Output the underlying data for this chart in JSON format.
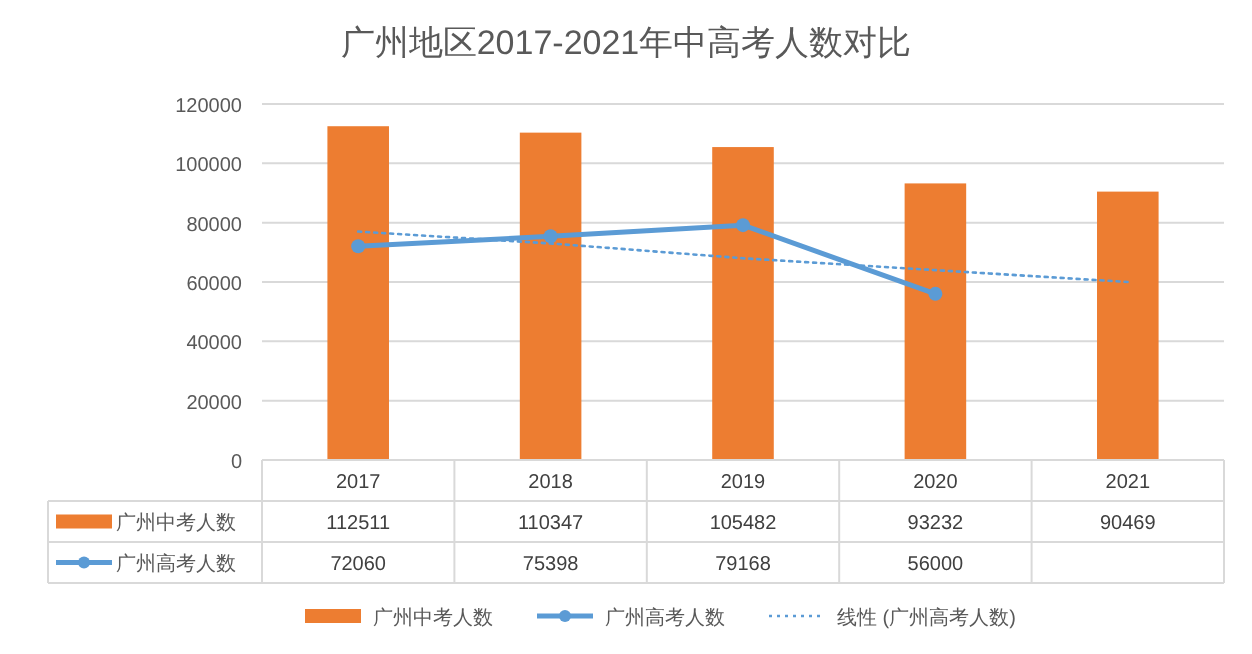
{
  "chart_data": {
    "type": "bar",
    "title": "广州地区2017-2021年中高考人数对比",
    "categories": [
      "2017",
      "2018",
      "2019",
      "2020",
      "2021"
    ],
    "series": [
      {
        "name": "广州中考人数",
        "color": "#ed7d31",
        "values": [
          112511,
          110347,
          105482,
          93232,
          90469
        ],
        "value_labels": [
          "112511",
          "110347",
          "105482",
          "93232",
          "90469"
        ]
      },
      {
        "name": "广州高考人数",
        "type": "line",
        "color": "#5b9bd5",
        "marker": "circle",
        "line_style": "solid",
        "values": [
          72060,
          75398,
          79168,
          56000,
          null
        ],
        "value_labels": [
          "72060",
          "75398",
          "79168",
          "56000",
          null
        ]
      },
      {
        "name": "线性 (广州高考人数)",
        "type": "line",
        "color": "#5b9bd5",
        "marker": "none",
        "line_style": "dotted",
        "values": [
          77000,
          73000,
          68000,
          64000,
          60000
        ]
      }
    ],
    "ylim": [
      0,
      120000
    ],
    "yticks": [
      0,
      20000,
      40000,
      60000,
      80000,
      100000,
      120000
    ],
    "grid": "y",
    "legend": "bottom"
  }
}
